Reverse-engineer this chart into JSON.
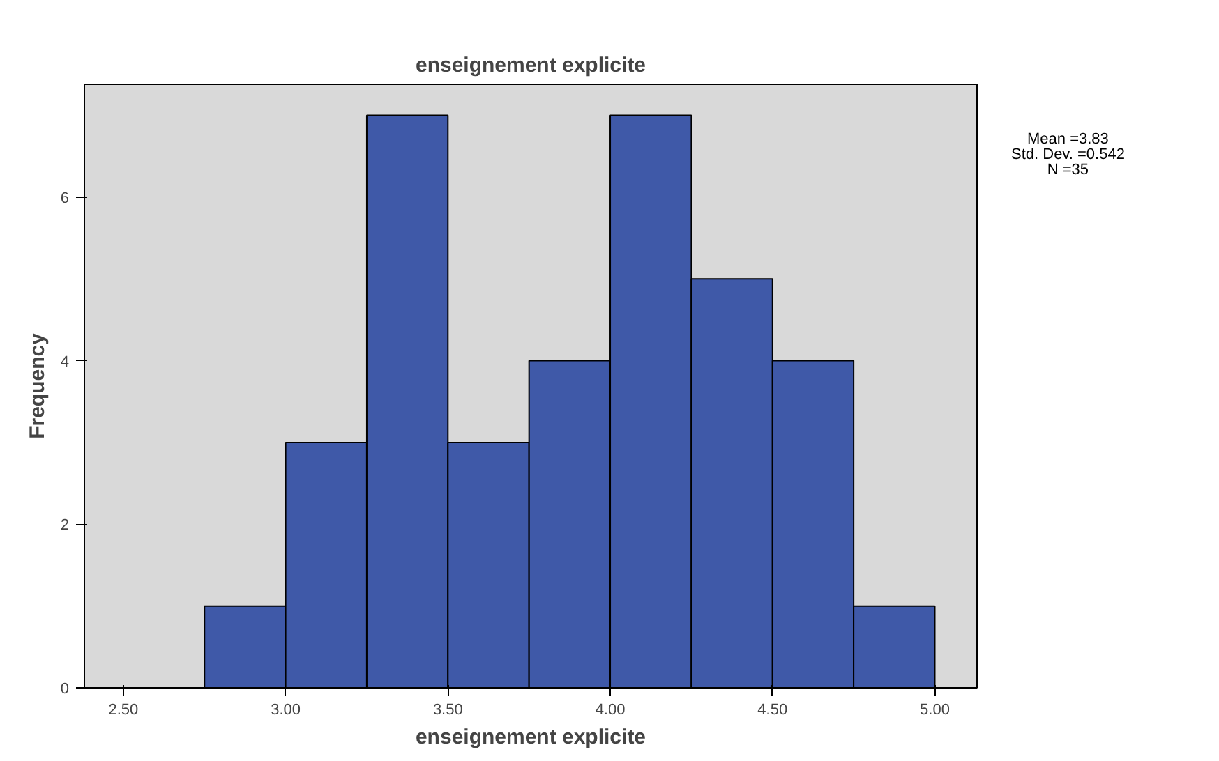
{
  "chart_data": {
    "type": "histogram",
    "title": "enseignement explicite",
    "xlabel": "enseignement explicite",
    "ylabel": "Frequency",
    "bins": [
      2.75,
      3.0,
      3.25,
      3.5,
      3.75,
      4.0,
      4.25,
      4.5,
      4.75,
      5.0
    ],
    "values": [
      1,
      3,
      7,
      3,
      4,
      7,
      5,
      4,
      1
    ],
    "color": "#3f59a8",
    "xlim": [
      2.38,
      5.13
    ],
    "xticks": [
      {
        "value": 2.5,
        "label": "2.50"
      },
      {
        "value": 3.0,
        "label": "3.00"
      },
      {
        "value": 3.5,
        "label": "3.50"
      },
      {
        "value": 4.0,
        "label": "4.00"
      },
      {
        "value": 4.5,
        "label": "4.50"
      },
      {
        "value": 5.0,
        "label": "5.00"
      }
    ],
    "ylim": [
      0,
      7.38
    ],
    "yticks": [
      0,
      2,
      4,
      6
    ],
    "grid": false,
    "annotations": [
      "Mean =3.83",
      "Std. Dev. =0.542",
      "N =35"
    ]
  }
}
